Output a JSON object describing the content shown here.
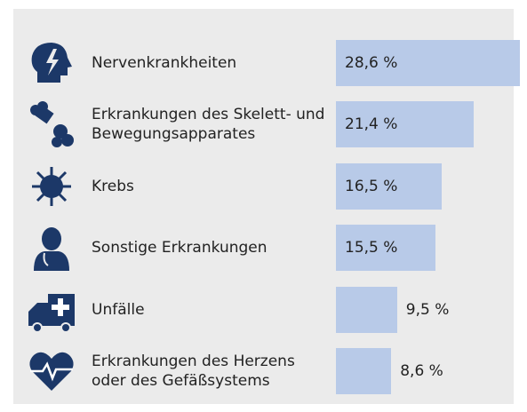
{
  "chart_data": {
    "type": "bar",
    "categories": [
      "Nervenkrankheiten",
      "Erkrankungen des Skelett- und Bewegungsapparates",
      "Krebs",
      "Sonstige Erkrankungen",
      "Unfälle",
      "Erkrankungen des Herzens oder des Gefäßsystems"
    ],
    "values": [
      28.6,
      21.4,
      16.5,
      15.5,
      9.5,
      8.6
    ],
    "value_labels": [
      "28,6 %",
      "21,4 %",
      "16,5 %",
      "15,5 %",
      "9,5 %",
      "8,6 %"
    ],
    "color": "#b8cae8"
  }
}
